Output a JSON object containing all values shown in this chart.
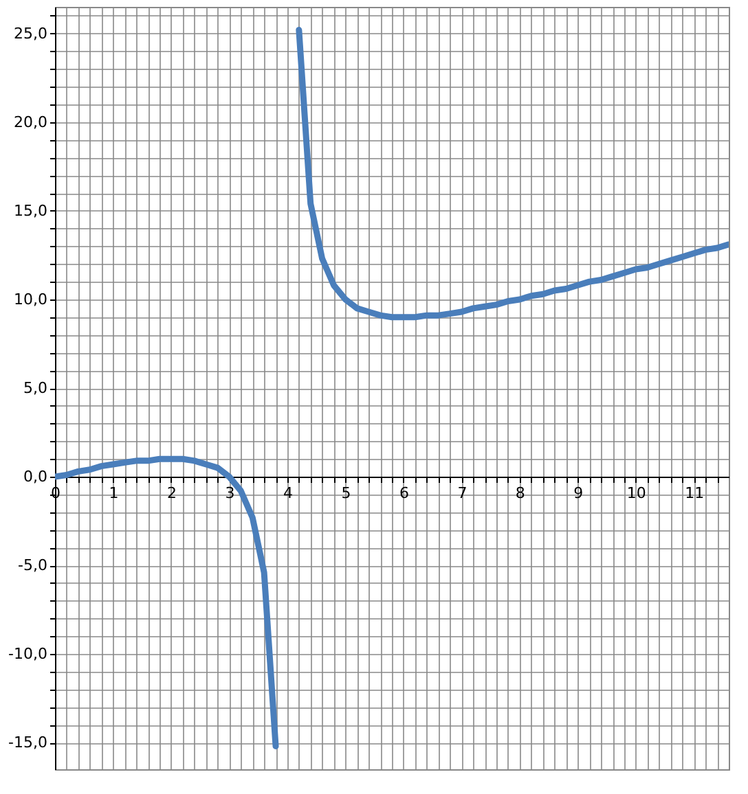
{
  "chart_data": {
    "type": "line",
    "x": [
      0,
      0.2,
      0.4,
      0.6,
      0.8,
      1,
      1.2,
      1.4,
      1.6,
      1.8,
      2,
      2.2,
      2.4,
      2.6,
      2.8,
      3,
      3.2,
      3.4,
      3.6,
      3.8,
      4,
      4.2,
      4.4,
      4.6,
      4.8,
      5,
      5.2,
      5.4,
      5.6,
      5.8,
      6,
      6.2,
      6.4,
      6.6,
      6.8,
      7,
      7.2,
      7.4,
      7.6,
      7.8,
      8,
      8.2,
      8.4,
      8.6,
      8.8,
      9,
      9.2,
      9.4,
      9.6,
      9.8,
      10,
      10.2,
      10.4,
      10.6,
      10.8,
      11,
      11.2,
      11.4,
      11.6
    ],
    "series": [
      {
        "color": "#4a7ebb",
        "values": [
          0,
          0.1,
          0.3,
          0.4,
          0.6,
          0.7,
          0.8,
          0.9,
          0.9,
          1.0,
          1.0,
          1.0,
          0.9,
          0.7,
          0.5,
          0,
          -0.8,
          -2.3,
          -5.4,
          -15.2,
          null,
          25.2,
          15.4,
          12.3,
          10.8,
          10,
          9.5,
          9.3,
          9.1,
          9.0,
          9,
          9.0,
          9.1,
          9.1,
          9.2,
          9.3,
          9.5,
          9.6,
          9.7,
          9.9,
          10,
          10.2,
          10.3,
          10.5,
          10.6,
          10.8,
          11.0,
          11.1,
          11.3,
          11.5,
          11.7,
          11.8,
          12.0,
          12.2,
          12.4,
          12.6,
          12.8,
          12.9,
          13.1
        ]
      }
    ],
    "xlim": [
      0,
      11.6
    ],
    "ylim": [
      -16.5,
      26.5
    ],
    "xticks": [
      0,
      {
        "value": 0.2,
        "label": null
      },
      {
        "value": 0.4,
        "label": null
      },
      {
        "value": 0.6,
        "label": null
      },
      {
        "value": 0.8,
        "label": null
      },
      1,
      {
        "value": 1.2,
        "label": null
      },
      {
        "value": 1.4,
        "label": null
      },
      {
        "value": 1.6,
        "label": null
      },
      {
        "value": 1.8,
        "label": null
      },
      2,
      {
        "value": 2.2,
        "label": null
      },
      {
        "value": 2.4,
        "label": null
      },
      {
        "value": 2.6,
        "label": null
      },
      {
        "value": 2.8,
        "label": null
      },
      3,
      {
        "value": 3.2,
        "label": null
      },
      {
        "value": 3.4,
        "label": null
      },
      {
        "value": 3.6,
        "label": null
      },
      {
        "value": 3.8,
        "label": null
      },
      4,
      {
        "value": 4.2,
        "label": null
      },
      {
        "value": 4.4,
        "label": null
      },
      {
        "value": 4.6,
        "label": null
      },
      {
        "value": 4.8,
        "label": null
      },
      5,
      {
        "value": 5.2,
        "label": null
      },
      {
        "value": 5.4,
        "label": null
      },
      {
        "value": 5.6,
        "label": null
      },
      {
        "value": 5.8,
        "label": null
      },
      6,
      {
        "value": 6.2,
        "label": null
      },
      {
        "value": 6.4,
        "label": null
      },
      {
        "value": 6.6,
        "label": null
      },
      {
        "value": 6.8,
        "label": null
      },
      7,
      {
        "value": 7.2,
        "label": null
      },
      {
        "value": 7.4,
        "label": null
      },
      {
        "value": 7.6,
        "label": null
      },
      {
        "value": 7.8,
        "label": null
      },
      8,
      {
        "value": 8.2,
        "label": null
      },
      {
        "value": 8.4,
        "label": null
      },
      {
        "value": 8.6,
        "label": null
      },
      {
        "value": 8.8,
        "label": null
      },
      9,
      {
        "value": 9.2,
        "label": null
      },
      {
        "value": 9.4,
        "label": null
      },
      {
        "value": 9.6,
        "label": null
      },
      {
        "value": 9.8,
        "label": null
      },
      10,
      {
        "value": 10.2,
        "label": null
      },
      {
        "value": 10.4,
        "label": null
      },
      {
        "value": 10.6,
        "label": null
      },
      {
        "value": 10.8,
        "label": null
      },
      11,
      {
        "value": 11.2,
        "label": null
      },
      {
        "value": 11.4,
        "label": null
      }
    ],
    "yticks": [
      {
        "value": -15,
        "label": "-15,0"
      },
      {
        "value": -14,
        "label": null
      },
      {
        "value": -13,
        "label": null
      },
      {
        "value": -12,
        "label": null
      },
      {
        "value": -11,
        "label": null
      },
      {
        "value": -10,
        "label": "-10,0"
      },
      {
        "value": -9,
        "label": null
      },
      {
        "value": -8,
        "label": null
      },
      {
        "value": -7,
        "label": null
      },
      {
        "value": -6,
        "label": null
      },
      {
        "value": -5,
        "label": "-5,0"
      },
      {
        "value": -4,
        "label": null
      },
      {
        "value": -3,
        "label": null
      },
      {
        "value": -2,
        "label": null
      },
      {
        "value": -1,
        "label": null
      },
      {
        "value": 0,
        "label": "0,0"
      },
      {
        "value": 1,
        "label": null
      },
      {
        "value": 2,
        "label": null
      },
      {
        "value": 3,
        "label": null
      },
      {
        "value": 4,
        "label": null
      },
      {
        "value": 5,
        "label": "5,0"
      },
      {
        "value": 6,
        "label": null
      },
      {
        "value": 7,
        "label": null
      },
      {
        "value": 8,
        "label": null
      },
      {
        "value": 9,
        "label": null
      },
      {
        "value": 10,
        "label": "10,0"
      },
      {
        "value": 11,
        "label": null
      },
      {
        "value": 12,
        "label": null
      },
      {
        "value": 13,
        "label": null
      },
      {
        "value": 14,
        "label": null
      },
      {
        "value": 15,
        "label": "15,0"
      },
      {
        "value": 16,
        "label": null
      },
      {
        "value": 17,
        "label": null
      },
      {
        "value": 18,
        "label": null
      },
      {
        "value": 19,
        "label": null
      },
      {
        "value": 20,
        "label": "20,0"
      },
      {
        "value": 21,
        "label": null
      },
      {
        "value": 22,
        "label": null
      },
      {
        "value": 23,
        "label": null
      },
      {
        "value": 24,
        "label": null
      },
      {
        "value": 25,
        "label": "25,0"
      },
      {
        "value": 26,
        "label": null
      }
    ],
    "grid": true
  }
}
